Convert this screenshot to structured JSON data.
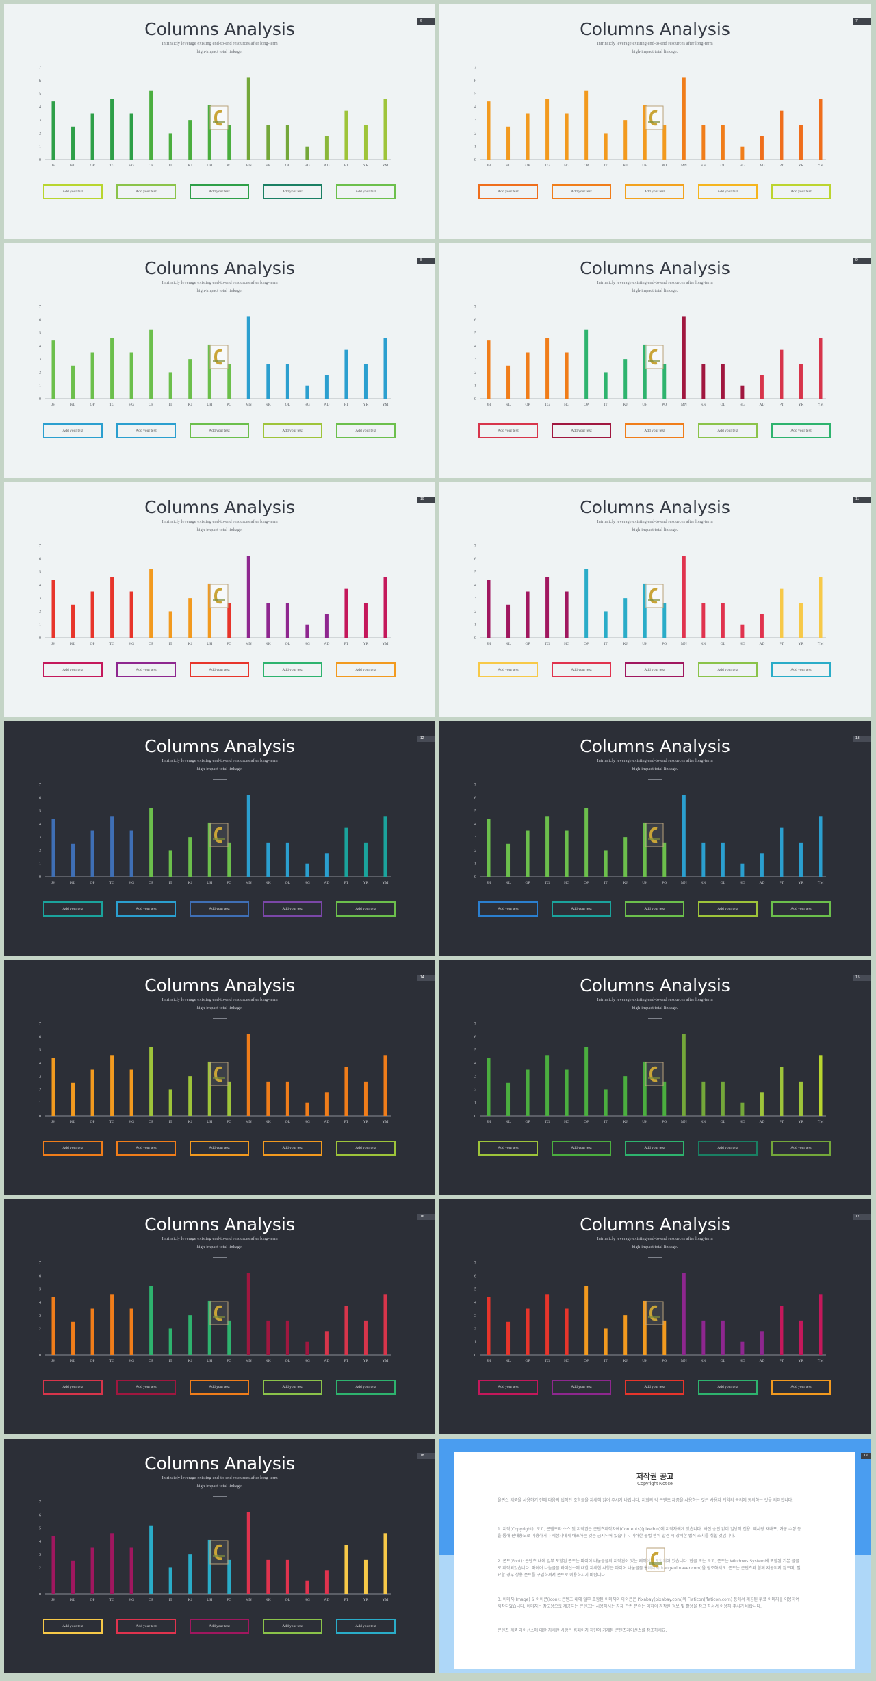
{
  "slide_common": {
    "title": "Columns Analysis",
    "subtitle": "Intrinsicly leverage existing end-to-end resources after long-term\nhigh-impact total linkage.",
    "pill_label": "Add your text"
  },
  "slides": [
    {
      "theme": "light",
      "number": "6",
      "colors": [
        "#2e9f48",
        "#2e9f48",
        "#2e9f48",
        "#2e9f48",
        "#2e9f48",
        "#4bae3f",
        "#4bae3f",
        "#4bae3f",
        "#4bae3f",
        "#4bae3f",
        "#74a73a",
        "#74a73a",
        "#74a73a",
        "#74a73a",
        "#8ab73a",
        "#9ec43a",
        "#9ec43a",
        "#9ec43a"
      ],
      "pill_colors": [
        "#b8d52f",
        "#8bc34a",
        "#2e9f48",
        "#1a7f63",
        "#6cbf4c"
      ]
    },
    {
      "theme": "light",
      "number": "7",
      "colors": [
        "#f29a1f",
        "#f29a1f",
        "#f29a1f",
        "#f29a1f",
        "#f29a1f",
        "#f29a1f",
        "#f29a1f",
        "#f29a1f",
        "#f29a1f",
        "#f29a1f",
        "#f07d1a",
        "#f07d1a",
        "#f07d1a",
        "#f07d1a",
        "#ef6e1c",
        "#ef6e1c",
        "#ef6e1c",
        "#ef6e1c"
      ],
      "pill_colors": [
        "#ef6e1c",
        "#f07d1a",
        "#f2a21f",
        "#f5b51f",
        "#bcd42f"
      ]
    },
    {
      "theme": "light",
      "number": "8",
      "colors": [
        "#6cbf4c",
        "#6cbf4c",
        "#6cbf4c",
        "#6cbf4c",
        "#6cbf4c",
        "#6cbf4c",
        "#6cbf4c",
        "#6cbf4c",
        "#6cbf4c",
        "#6cbf4c",
        "#2b9fcf",
        "#2b9fcf",
        "#2b9fcf",
        "#2b9fcf",
        "#2b9fcf",
        "#2b9fcf",
        "#2b9fcf",
        "#2b9fcf"
      ],
      "pill_colors": [
        "#2b9fcf",
        "#2b9fcf",
        "#6cbf4c",
        "#9ec43a",
        "#6cbf4c"
      ]
    },
    {
      "theme": "light",
      "number": "9",
      "colors": [
        "#f07d1a",
        "#f07d1a",
        "#f07d1a",
        "#f07d1a",
        "#f07d1a",
        "#2eb36e",
        "#2eb36e",
        "#2eb36e",
        "#2eb36e",
        "#2eb36e",
        "#a0173f",
        "#a0173f",
        "#a0173f",
        "#a0173f",
        "#d7354b",
        "#d7354b",
        "#d7354b",
        "#d7354b"
      ],
      "pill_colors": [
        "#d7354b",
        "#a0173f",
        "#f07d1a",
        "#8bc34a",
        "#2eb36e"
      ]
    },
    {
      "theme": "light",
      "number": "10",
      "colors": [
        "#e7352b",
        "#e7352b",
        "#e7352b",
        "#e7352b",
        "#e7352b",
        "#f29a1f",
        "#f29a1f",
        "#f29a1f",
        "#f29a1f",
        "#e7352b",
        "#8e278f",
        "#8e278f",
        "#8e278f",
        "#8e278f",
        "#8e278f",
        "#c4185b",
        "#c4185b",
        "#c4185b"
      ],
      "pill_colors": [
        "#c4185b",
        "#8e278f",
        "#e7352b",
        "#2eb36e",
        "#f29a1f"
      ]
    },
    {
      "theme": "light",
      "number": "11",
      "colors": [
        "#a0175f",
        "#a0175f",
        "#a0175f",
        "#a0175f",
        "#a0175f",
        "#2aacc8",
        "#2aacc8",
        "#2aacc8",
        "#2aacc8",
        "#2aacc8",
        "#e0334e",
        "#e0334e",
        "#e0334e",
        "#e0334e",
        "#e0334e",
        "#f7c948",
        "#f7c948",
        "#f7c948"
      ],
      "pill_colors": [
        "#f7c948",
        "#e0334e",
        "#a0175f",
        "#8bc34a",
        "#2aacc8"
      ]
    },
    {
      "theme": "dark",
      "number": "12",
      "colors": [
        "#3f6fb5",
        "#3f6fb5",
        "#3f6fb5",
        "#3f6fb5",
        "#3f6fb5",
        "#6cbf4c",
        "#6cbf4c",
        "#6cbf4c",
        "#6cbf4c",
        "#6cbf4c",
        "#2b9fcf",
        "#2b9fcf",
        "#2b9fcf",
        "#2b9fcf",
        "#2b9fcf",
        "#1ba39c",
        "#1ba39c",
        "#1ba39c"
      ],
      "pill_colors": [
        "#1ba39c",
        "#2b9fcf",
        "#3f6fb5",
        "#7b47a8",
        "#6cbf4c"
      ]
    },
    {
      "theme": "dark",
      "number": "13",
      "colors": [
        "#6cbf4c",
        "#6cbf4c",
        "#6cbf4c",
        "#6cbf4c",
        "#6cbf4c",
        "#6cbf4c",
        "#6cbf4c",
        "#6cbf4c",
        "#6cbf4c",
        "#6cbf4c",
        "#2b9fcf",
        "#2b9fcf",
        "#2b9fcf",
        "#2b9fcf",
        "#2b9fcf",
        "#2b9fcf",
        "#2b9fcf",
        "#2b9fcf"
      ],
      "pill_colors": [
        "#2b7fcf",
        "#1ba39c",
        "#6cbf4c",
        "#9ec43a",
        "#6cbf4c"
      ]
    },
    {
      "theme": "dark",
      "number": "14",
      "colors": [
        "#f29a1f",
        "#f29a1f",
        "#f29a1f",
        "#f29a1f",
        "#f29a1f",
        "#9ec43a",
        "#9ec43a",
        "#9ec43a",
        "#9ec43a",
        "#9ec43a",
        "#f07d1a",
        "#f07d1a",
        "#f07d1a",
        "#f07d1a",
        "#f07d1a",
        "#f07d1a",
        "#f07d1a",
        "#f07d1a"
      ],
      "pill_colors": [
        "#f07d1a",
        "#f07d1a",
        "#f29a1f",
        "#f29a1f",
        "#9ec43a"
      ]
    },
    {
      "theme": "dark",
      "number": "15",
      "colors": [
        "#4bae3f",
        "#4bae3f",
        "#4bae3f",
        "#4bae3f",
        "#4bae3f",
        "#4bae3f",
        "#4bae3f",
        "#4bae3f",
        "#4bae3f",
        "#4bae3f",
        "#74a73a",
        "#74a73a",
        "#74a73a",
        "#74a73a",
        "#9ec43a",
        "#9ec43a",
        "#9ec43a",
        "#b8d52f"
      ],
      "pill_colors": [
        "#9ec43a",
        "#4bae3f",
        "#2eb36e",
        "#1a7f63",
        "#74a73a"
      ]
    },
    {
      "theme": "dark",
      "number": "16",
      "colors": [
        "#f07d1a",
        "#f07d1a",
        "#f07d1a",
        "#f07d1a",
        "#f07d1a",
        "#2eb36e",
        "#2eb36e",
        "#2eb36e",
        "#2eb36e",
        "#2eb36e",
        "#a0173f",
        "#a0173f",
        "#a0173f",
        "#a0173f",
        "#d7354b",
        "#d7354b",
        "#d7354b",
        "#d7354b"
      ],
      "pill_colors": [
        "#d7354b",
        "#a0173f",
        "#f07d1a",
        "#8bc34a",
        "#2eb36e"
      ]
    },
    {
      "theme": "dark",
      "number": "17",
      "colors": [
        "#e7352b",
        "#e7352b",
        "#e7352b",
        "#e7352b",
        "#e7352b",
        "#f29a1f",
        "#f29a1f",
        "#f29a1f",
        "#f29a1f",
        "#f29a1f",
        "#8e278f",
        "#8e278f",
        "#8e278f",
        "#8e278f",
        "#8e278f",
        "#c4185b",
        "#c4185b",
        "#c4185b"
      ],
      "pill_colors": [
        "#c4185b",
        "#8e278f",
        "#e7352b",
        "#2eb36e",
        "#f29a1f"
      ]
    },
    {
      "theme": "dark",
      "number": "18",
      "colors": [
        "#a0175f",
        "#a0175f",
        "#a0175f",
        "#a0175f",
        "#a0175f",
        "#2aacc8",
        "#2aacc8",
        "#2aacc8",
        "#2aacc8",
        "#2aacc8",
        "#e0334e",
        "#e0334e",
        "#e0334e",
        "#e0334e",
        "#e0334e",
        "#f7c948",
        "#f7c948",
        "#f7c948"
      ],
      "pill_colors": [
        "#f7c948",
        "#e0334e",
        "#a0175f",
        "#8bc34a",
        "#2aacc8"
      ]
    }
  ],
  "chart_data": {
    "type": "bar",
    "categories": [
      "JH",
      "KL",
      "OP",
      "TG",
      "HG",
      "OP",
      "IT",
      "KJ",
      "UH",
      "PO",
      "MN",
      "KK",
      "OL",
      "HG",
      "AD",
      "PT",
      "YR",
      "YM"
    ],
    "values": [
      4.4,
      2.5,
      3.5,
      4.6,
      3.5,
      5.2,
      2.0,
      3.0,
      4.1,
      2.6,
      6.2,
      2.6,
      2.6,
      1.0,
      1.8,
      3.7,
      2.6,
      4.6
    ],
    "ylim": [
      0,
      7
    ],
    "yticks": [
      "0",
      "1",
      "2",
      "3",
      "4",
      "5",
      "6",
      "7"
    ]
  },
  "notice": {
    "title": "저작권 공고",
    "subtitle": "Copyright Notice",
    "intro": "올핀스 제품을 사용하기 전에 다음의 법적인 조항들을 자세히 읽어 주시기 바랍니다. 저희의 각 콘텐츠 제품을 사용하는 것은 사용자 계약의 동의에 동의하는 것을 의미합니다.",
    "p1": "1. 저작(Copyright): 로고, 콘텐츠와 소스 및 저작권은 콘텐츠제작자에(Contents)(pixelbin)에 저작자에게 있습니다. 사전 승인 없이 일방적 전용, 재사장 재배포, 가공 수정 등을 통해 판매용도로 이용하거나 제삼자에게 배포하는 것은 금지되어 있습니다. 이러한 불법 행위 발견 시 강력한 법적 조치를 취할 것입니다.",
    "p2": "2. 폰트(Font): 콘텐츠 내에 일부 포함된 폰트는 파이어 나눔글꼴의 저작권이 있는 제작에게 포함되어 있습니다. 한글 또는 로고, 폰트는 Windows System에 포함된 기본 글꼴로 제작되었습니다. 파이어 나눔글꼴 라이선스에 대한 자세한 사항은 파이어 나눔글꼴 홈페이지(hangeul.naver.com)을 참조하세요. 폰트는 콘텐츠와 함께 제공되지 않으며, 필요할 경우 상용 폰트를 구입하셔서 폰트로 이용하시기 바랍니다.",
    "p3": "3. 이미지(Image) & 아이콘(Icon): 콘텐츠 내에 일부 포함된 이미지와 아이콘은 Pixabay(pixabay.com)와 Flaticon(flaticon.com) 등에서 제공된 무료 이미지를 이용하여 제작되었습니다. 이미지는 참고용으로 제공되는 콘텐츠는 사용하시는 자체 판권 문의는 이하의 저작권 정보 및 활용을 참고 하셔서 이용해 주시기 바랍니다.",
    "outro": "콘텐츠 제품 라이선스에 대한 자세한 사항은 홈페이지 하단에 기재된 콘텐츠라이선스를 참조하세요.",
    "number": "19"
  }
}
